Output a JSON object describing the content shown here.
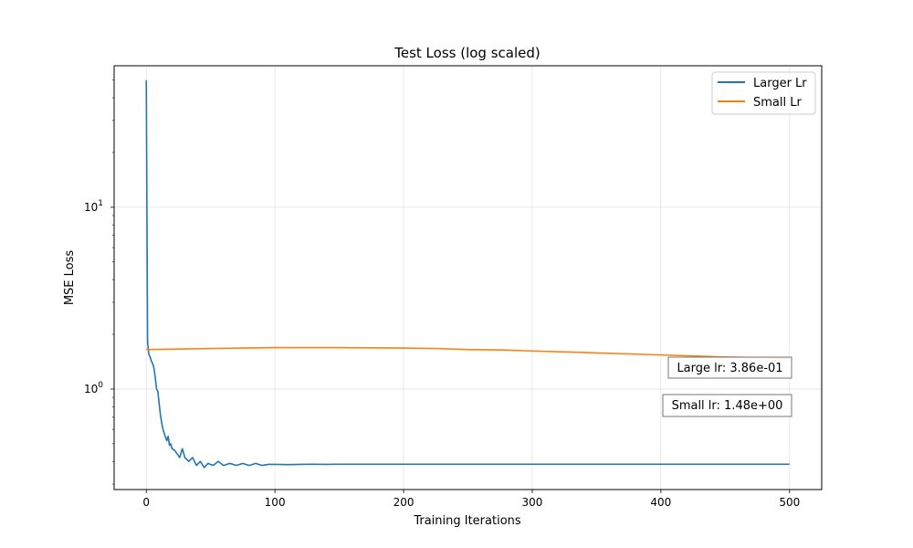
{
  "chart_data": {
    "type": "line",
    "title": "Test Loss (log scaled)",
    "xlabel": "Training Iterations",
    "ylabel": "MSE Loss",
    "xscale": "linear",
    "yscale": "log",
    "xlim": [
      -25,
      525
    ],
    "ylim": [
      0.28,
      60
    ],
    "xticks": [
      {
        "value": 0,
        "label": "0"
      },
      {
        "value": 100,
        "label": "100"
      },
      {
        "value": 200,
        "label": "200"
      },
      {
        "value": 300,
        "label": "300"
      },
      {
        "value": 400,
        "label": "400"
      },
      {
        "value": 500,
        "label": "500"
      }
    ],
    "yticks_major": [
      {
        "value": 1,
        "base": "10",
        "exp": "0"
      },
      {
        "value": 10,
        "base": "10",
        "exp": "1"
      }
    ],
    "grid": true,
    "legend": {
      "position": "upper right"
    },
    "series": [
      {
        "name": "Larger Lr",
        "color": "#1f77b4",
        "points": [
          [
            0,
            50.0
          ],
          [
            1,
            1.8
          ],
          [
            2,
            1.55
          ],
          [
            3,
            1.5
          ],
          [
            4,
            1.42
          ],
          [
            5,
            1.38
          ],
          [
            6,
            1.3
          ],
          [
            7,
            1.15
          ],
          [
            8,
            1.0
          ],
          [
            9,
            0.97
          ],
          [
            10,
            0.83
          ],
          [
            11,
            0.72
          ],
          [
            12,
            0.65
          ],
          [
            13,
            0.6
          ],
          [
            14,
            0.57
          ],
          [
            15,
            0.54
          ],
          [
            16,
            0.52
          ],
          [
            17,
            0.55
          ],
          [
            18,
            0.49
          ],
          [
            19,
            0.5
          ],
          [
            20,
            0.47
          ],
          [
            22,
            0.46
          ],
          [
            24,
            0.44
          ],
          [
            26,
            0.42
          ],
          [
            28,
            0.47
          ],
          [
            30,
            0.42
          ],
          [
            33,
            0.4
          ],
          [
            36,
            0.42
          ],
          [
            39,
            0.38
          ],
          [
            42,
            0.4
          ],
          [
            45,
            0.37
          ],
          [
            48,
            0.39
          ],
          [
            52,
            0.38
          ],
          [
            56,
            0.4
          ],
          [
            60,
            0.38
          ],
          [
            65,
            0.39
          ],
          [
            70,
            0.38
          ],
          [
            75,
            0.39
          ],
          [
            80,
            0.38
          ],
          [
            85,
            0.39
          ],
          [
            90,
            0.38
          ],
          [
            95,
            0.385
          ],
          [
            100,
            0.385
          ],
          [
            110,
            0.384
          ],
          [
            120,
            0.385
          ],
          [
            130,
            0.386
          ],
          [
            140,
            0.385
          ],
          [
            150,
            0.386
          ],
          [
            175,
            0.386
          ],
          [
            200,
            0.386
          ],
          [
            250,
            0.386
          ],
          [
            300,
            0.386
          ],
          [
            350,
            0.386
          ],
          [
            400,
            0.386
          ],
          [
            450,
            0.386
          ],
          [
            500,
            0.386
          ]
        ]
      },
      {
        "name": "Small Lr",
        "color": "#ff7f0e",
        "points": [
          [
            0,
            1.65
          ],
          [
            25,
            1.66
          ],
          [
            50,
            1.67
          ],
          [
            75,
            1.68
          ],
          [
            100,
            1.69
          ],
          [
            125,
            1.69
          ],
          [
            150,
            1.69
          ],
          [
            175,
            1.685
          ],
          [
            200,
            1.68
          ],
          [
            225,
            1.67
          ],
          [
            250,
            1.65
          ],
          [
            275,
            1.64
          ],
          [
            300,
            1.62
          ],
          [
            325,
            1.6
          ],
          [
            350,
            1.58
          ],
          [
            375,
            1.56
          ],
          [
            400,
            1.54
          ],
          [
            425,
            1.52
          ],
          [
            450,
            1.5
          ],
          [
            475,
            1.49
          ],
          [
            500,
            1.48
          ]
        ]
      }
    ],
    "annotations": [
      {
        "text": "Large lr: 3.86e-01",
        "color": "#1f77b4"
      },
      {
        "text": "Small lr: 1.48e+00",
        "color": "#ff7f0e"
      }
    ]
  }
}
